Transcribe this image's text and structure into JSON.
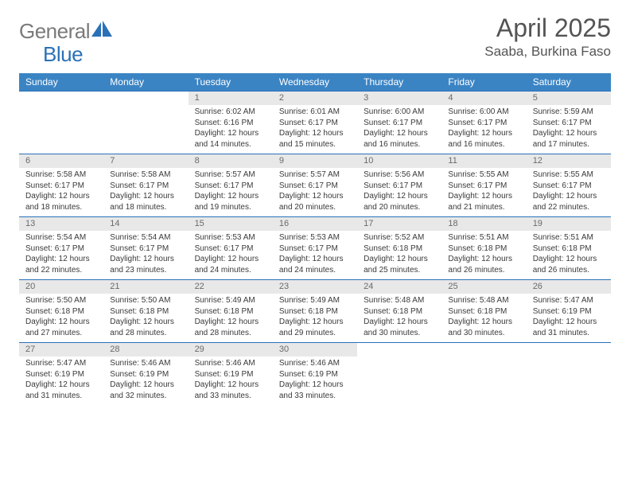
{
  "brand": {
    "part1": "General",
    "part2": "Blue"
  },
  "title": "April 2025",
  "location": "Saaba, Burkina Faso",
  "colors": {
    "header_bg": "#3b84c4",
    "border": "#2a71b8",
    "band_bg": "#e8e8e8",
    "text": "#3a3a3a",
    "title_text": "#545454"
  },
  "day_headers": [
    "Sunday",
    "Monday",
    "Tuesday",
    "Wednesday",
    "Thursday",
    "Friday",
    "Saturday"
  ],
  "weeks": [
    [
      null,
      null,
      {
        "n": "1",
        "sr": "6:02 AM",
        "ss": "6:16 PM",
        "dl": "12 hours and 14 minutes."
      },
      {
        "n": "2",
        "sr": "6:01 AM",
        "ss": "6:17 PM",
        "dl": "12 hours and 15 minutes."
      },
      {
        "n": "3",
        "sr": "6:00 AM",
        "ss": "6:17 PM",
        "dl": "12 hours and 16 minutes."
      },
      {
        "n": "4",
        "sr": "6:00 AM",
        "ss": "6:17 PM",
        "dl": "12 hours and 16 minutes."
      },
      {
        "n": "5",
        "sr": "5:59 AM",
        "ss": "6:17 PM",
        "dl": "12 hours and 17 minutes."
      }
    ],
    [
      {
        "n": "6",
        "sr": "5:58 AM",
        "ss": "6:17 PM",
        "dl": "12 hours and 18 minutes."
      },
      {
        "n": "7",
        "sr": "5:58 AM",
        "ss": "6:17 PM",
        "dl": "12 hours and 18 minutes."
      },
      {
        "n": "8",
        "sr": "5:57 AM",
        "ss": "6:17 PM",
        "dl": "12 hours and 19 minutes."
      },
      {
        "n": "9",
        "sr": "5:57 AM",
        "ss": "6:17 PM",
        "dl": "12 hours and 20 minutes."
      },
      {
        "n": "10",
        "sr": "5:56 AM",
        "ss": "6:17 PM",
        "dl": "12 hours and 20 minutes."
      },
      {
        "n": "11",
        "sr": "5:55 AM",
        "ss": "6:17 PM",
        "dl": "12 hours and 21 minutes."
      },
      {
        "n": "12",
        "sr": "5:55 AM",
        "ss": "6:17 PM",
        "dl": "12 hours and 22 minutes."
      }
    ],
    [
      {
        "n": "13",
        "sr": "5:54 AM",
        "ss": "6:17 PM",
        "dl": "12 hours and 22 minutes."
      },
      {
        "n": "14",
        "sr": "5:54 AM",
        "ss": "6:17 PM",
        "dl": "12 hours and 23 minutes."
      },
      {
        "n": "15",
        "sr": "5:53 AM",
        "ss": "6:17 PM",
        "dl": "12 hours and 24 minutes."
      },
      {
        "n": "16",
        "sr": "5:53 AM",
        "ss": "6:17 PM",
        "dl": "12 hours and 24 minutes."
      },
      {
        "n": "17",
        "sr": "5:52 AM",
        "ss": "6:18 PM",
        "dl": "12 hours and 25 minutes."
      },
      {
        "n": "18",
        "sr": "5:51 AM",
        "ss": "6:18 PM",
        "dl": "12 hours and 26 minutes."
      },
      {
        "n": "19",
        "sr": "5:51 AM",
        "ss": "6:18 PM",
        "dl": "12 hours and 26 minutes."
      }
    ],
    [
      {
        "n": "20",
        "sr": "5:50 AM",
        "ss": "6:18 PM",
        "dl": "12 hours and 27 minutes."
      },
      {
        "n": "21",
        "sr": "5:50 AM",
        "ss": "6:18 PM",
        "dl": "12 hours and 28 minutes."
      },
      {
        "n": "22",
        "sr": "5:49 AM",
        "ss": "6:18 PM",
        "dl": "12 hours and 28 minutes."
      },
      {
        "n": "23",
        "sr": "5:49 AM",
        "ss": "6:18 PM",
        "dl": "12 hours and 29 minutes."
      },
      {
        "n": "24",
        "sr": "5:48 AM",
        "ss": "6:18 PM",
        "dl": "12 hours and 30 minutes."
      },
      {
        "n": "25",
        "sr": "5:48 AM",
        "ss": "6:18 PM",
        "dl": "12 hours and 30 minutes."
      },
      {
        "n": "26",
        "sr": "5:47 AM",
        "ss": "6:19 PM",
        "dl": "12 hours and 31 minutes."
      }
    ],
    [
      {
        "n": "27",
        "sr": "5:47 AM",
        "ss": "6:19 PM",
        "dl": "12 hours and 31 minutes."
      },
      {
        "n": "28",
        "sr": "5:46 AM",
        "ss": "6:19 PM",
        "dl": "12 hours and 32 minutes."
      },
      {
        "n": "29",
        "sr": "5:46 AM",
        "ss": "6:19 PM",
        "dl": "12 hours and 33 minutes."
      },
      {
        "n": "30",
        "sr": "5:46 AM",
        "ss": "6:19 PM",
        "dl": "12 hours and 33 minutes."
      },
      null,
      null,
      null
    ]
  ],
  "labels": {
    "sunrise": "Sunrise:",
    "sunset": "Sunset:",
    "daylight": "Daylight:"
  }
}
